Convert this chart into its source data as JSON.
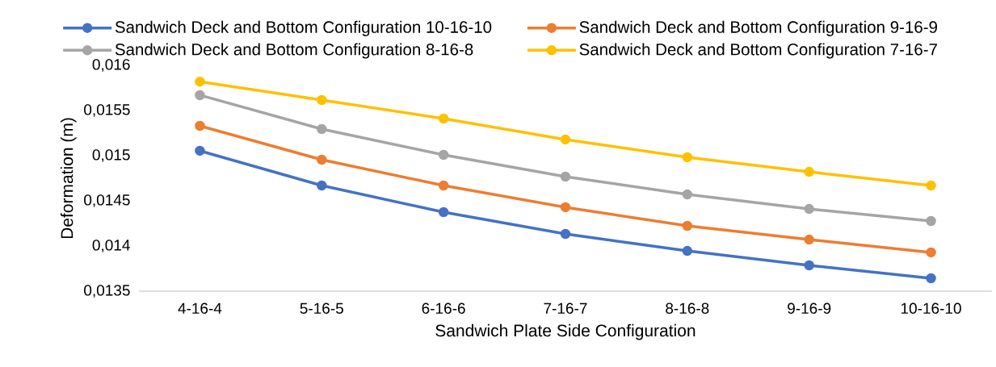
{
  "chart_data": {
    "type": "line",
    "xlabel": "Sandwich Plate Side Configuration",
    "ylabel": "Deformation  (m)",
    "categories": [
      "4-16-4",
      "5-16-5",
      "6-16-6",
      "7-16-7",
      "8-16-8",
      "9-16-9",
      "10-16-10"
    ],
    "series": [
      {
        "name": "Sandwich Deck and Bottom Configuration 10-16-10",
        "color": "#4472c4",
        "values": [
          0.015054,
          0.01467,
          0.014375,
          0.014134,
          0.013946,
          0.013786,
          0.013643
        ]
      },
      {
        "name": "Sandwich Deck and Bottom Configuration 9-16-9",
        "color": "#ed7d31",
        "values": [
          0.01533,
          0.014955,
          0.01467,
          0.014429,
          0.014223,
          0.014071,
          0.013929
        ]
      },
      {
        "name": "Sandwich Deck and Bottom Configuration 8-16-8",
        "color": "#a5a5a5",
        "values": [
          0.01567,
          0.015295,
          0.015009,
          0.014768,
          0.014571,
          0.01441,
          0.014277
        ]
      },
      {
        "name": "Sandwich Deck and Bottom Configuration 7-16-7",
        "color": "#ffc000",
        "values": [
          0.01582,
          0.015616,
          0.015411,
          0.015179,
          0.014982,
          0.014821,
          0.01467
        ]
      }
    ],
    "ylim": [
      0.0135,
      0.016
    ],
    "yticks": [
      {
        "value": 0.0135,
        "label": "0,0135"
      },
      {
        "value": 0.014,
        "label": "0,014"
      },
      {
        "value": 0.0145,
        "label": "0,0145"
      },
      {
        "value": 0.015,
        "label": "0,015"
      },
      {
        "value": 0.0155,
        "label": "0,0155"
      },
      {
        "value": 0.016,
        "label": "0,016"
      }
    ],
    "grid": false,
    "legend": "top",
    "marker": "circle",
    "line_style": "solid"
  }
}
